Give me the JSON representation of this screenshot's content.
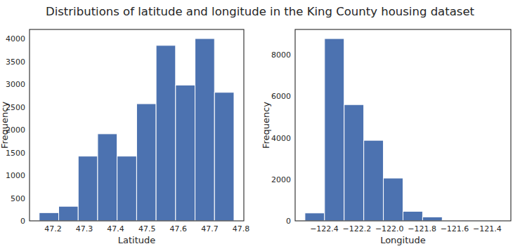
{
  "title": "Distributions of latitude and longitude in the King County housing dataset",
  "chart_data": [
    {
      "type": "histogram",
      "xlabel": "Latitude",
      "ylabel": "Frequency",
      "bins": [
        47.1559,
        47.2181,
        47.2803,
        47.3424,
        47.4046,
        47.4668,
        47.5289,
        47.5911,
        47.6533,
        47.7154,
        47.7776
      ],
      "values": [
        180,
        320,
        1420,
        1910,
        1420,
        2570,
        3850,
        2980,
        4000,
        2820
      ],
      "color": "#4c72b0",
      "xlim": [
        47.125,
        47.809
      ],
      "xticks": [
        47.2,
        47.3,
        47.4,
        47.5,
        47.6,
        47.7,
        47.8
      ],
      "ylim": [
        0,
        4200
      ],
      "yticks": [
        0,
        500,
        1000,
        1500,
        2000,
        2500,
        3000,
        3500,
        4000
      ],
      "grid": false
    },
    {
      "type": "histogram",
      "xlabel": "Longitude",
      "ylabel": "Frequency",
      "bins": [
        -122.519,
        -122.3986,
        -122.2782,
        -122.1578,
        -122.0374,
        -121.917,
        -121.7966,
        -121.6762,
        -121.5558,
        -121.4354,
        -121.315
      ],
      "values": [
        380,
        8780,
        5600,
        3880,
        2060,
        460,
        190,
        30,
        10,
        5
      ],
      "color": "#4c72b0",
      "xlim": [
        -122.579,
        -121.255
      ],
      "xticks": [
        {
          "value": -122.4,
          "label": "−122.4"
        },
        {
          "value": -122.2,
          "label": "−122.2"
        },
        {
          "value": -122.0,
          "label": "−122.0"
        },
        {
          "value": -121.8,
          "label": "−121.8"
        },
        {
          "value": -121.6,
          "label": "−121.6"
        },
        {
          "value": -121.4,
          "label": "−121.4"
        }
      ],
      "ylim": [
        0,
        9220
      ],
      "yticks": [
        0,
        2000,
        4000,
        6000,
        8000
      ],
      "grid": false
    }
  ]
}
